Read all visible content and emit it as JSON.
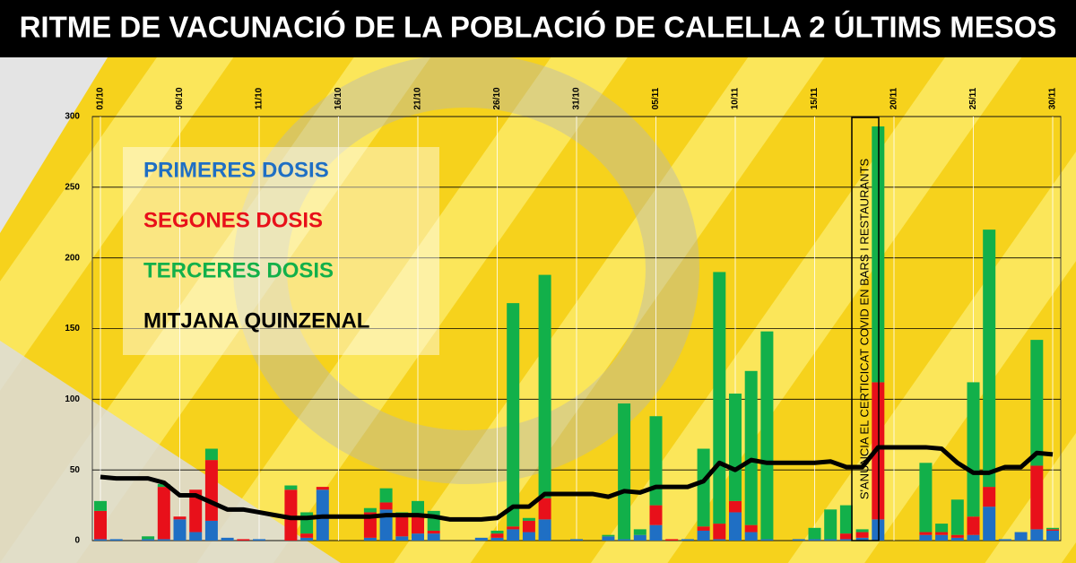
{
  "chart_data": {
    "type": "stacked-bar",
    "title": "RITME DE VACUNACIÓ DE LA POBLACIÓ DE CALELLA 2 ÚLTIMS MESOS",
    "annotation": "S'ANUNCIA EL CERTICICAT COVID EN BARS I RESTAURANTS",
    "categories": [
      "01/10",
      null,
      null,
      null,
      null,
      "06/10",
      null,
      null,
      null,
      null,
      "11/10",
      null,
      null,
      null,
      null,
      "16/10",
      null,
      null,
      null,
      null,
      "21/10",
      null,
      null,
      null,
      null,
      "26/10",
      null,
      null,
      null,
      null,
      "31/10",
      null,
      null,
      null,
      null,
      "05/11",
      null,
      null,
      null,
      null,
      "10/11",
      null,
      null,
      null,
      null,
      "15/11",
      null,
      null,
      null,
      null,
      "20/11",
      null,
      null,
      null,
      null,
      "25/11",
      null,
      null,
      null,
      null,
      "30/11"
    ],
    "series": [
      {
        "name": "PRIMERES DOSIS",
        "color": "#1f6fc4",
        "values": [
          1,
          1,
          0,
          1,
          1,
          15,
          6,
          14,
          2,
          0,
          1,
          0,
          0,
          2,
          36,
          0,
          0,
          2,
          22,
          3,
          5,
          5,
          0,
          0,
          2,
          2,
          8,
          6,
          15,
          0,
          1,
          0,
          3,
          1,
          4,
          11,
          0,
          1,
          7,
          1,
          20,
          6,
          1,
          0,
          1,
          1,
          1,
          1,
          2,
          15,
          0,
          0,
          4,
          4,
          2,
          4,
          24,
          1,
          6,
          8,
          7
        ]
      },
      {
        "name": "SEGONES DOSIS",
        "color": "#e8101a",
        "values": [
          20,
          0,
          0,
          0,
          37,
          2,
          30,
          43,
          0,
          1,
          0,
          0,
          36,
          3,
          2,
          0,
          0,
          18,
          5,
          16,
          14,
          2,
          0,
          0,
          0,
          3,
          2,
          8,
          15,
          0,
          0,
          0,
          0,
          0,
          0,
          14,
          1,
          0,
          3,
          11,
          8,
          5,
          0,
          0,
          0,
          0,
          0,
          4,
          4,
          97,
          0,
          0,
          2,
          2,
          2,
          13,
          14,
          0,
          0,
          45,
          1
        ]
      },
      {
        "name": "TERCERES DOSIS",
        "color": "#12b04a",
        "values": [
          7,
          0,
          0,
          2,
          2,
          0,
          0,
          8,
          0,
          0,
          0,
          0,
          3,
          15,
          0,
          0,
          0,
          3,
          10,
          1,
          9,
          14,
          0,
          0,
          0,
          2,
          158,
          2,
          158,
          0,
          0,
          0,
          1,
          96,
          4,
          63,
          0,
          0,
          55,
          178,
          76,
          109,
          147,
          0,
          0,
          8,
          21,
          20,
          2,
          181,
          0,
          0,
          49,
          6,
          25,
          95,
          182,
          0,
          0,
          89,
          1
        ]
      }
    ],
    "line": {
      "name": "MITJANA QUINZENAL",
      "color": "#000000",
      "values": [
        45,
        44,
        44,
        44,
        41,
        32,
        32,
        27,
        22,
        22,
        20,
        18,
        16,
        16,
        17,
        17,
        17,
        17,
        18,
        18,
        18,
        17,
        15,
        15,
        15,
        16,
        24,
        24,
        33,
        33,
        33,
        33,
        31,
        35,
        34,
        38,
        38,
        38,
        42,
        55,
        50,
        57,
        55,
        55,
        55,
        55,
        56,
        52,
        52,
        66,
        66,
        66,
        66,
        65,
        55,
        48,
        48,
        52,
        52,
        62,
        61
      ]
    },
    "ylim": [
      0,
      300
    ],
    "yticks": [
      0,
      50,
      100,
      150,
      200,
      250,
      300
    ],
    "grid": true
  }
}
